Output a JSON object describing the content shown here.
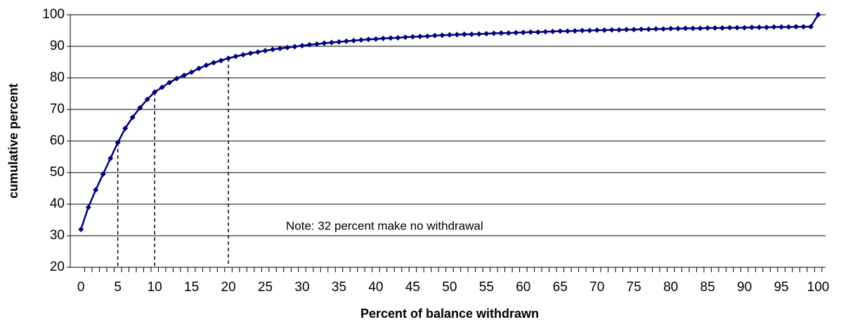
{
  "chart_data": {
    "type": "line",
    "xlabel": "Percent of balance withdrawn",
    "ylabel": "cumulative percent",
    "annotation": "Note:  32 percent make no withdrawal",
    "color": "#000080",
    "x": [
      0,
      1,
      2,
      3,
      4,
      5,
      6,
      7,
      8,
      9,
      10,
      11,
      12,
      13,
      14,
      15,
      16,
      17,
      18,
      19,
      20,
      21,
      22,
      23,
      24,
      25,
      26,
      27,
      28,
      29,
      30,
      31,
      32,
      33,
      34,
      35,
      36,
      37,
      38,
      39,
      40,
      41,
      42,
      43,
      44,
      45,
      46,
      47,
      48,
      49,
      50,
      51,
      52,
      53,
      54,
      55,
      56,
      57,
      58,
      59,
      60,
      61,
      62,
      63,
      64,
      65,
      66,
      67,
      68,
      69,
      70,
      71,
      72,
      73,
      74,
      75,
      76,
      77,
      78,
      79,
      80,
      81,
      82,
      83,
      84,
      85,
      86,
      87,
      88,
      89,
      90,
      91,
      92,
      93,
      94,
      95,
      96,
      97,
      98,
      99,
      100
    ],
    "values": [
      32,
      39,
      44.5,
      49.5,
      54.5,
      59.5,
      64,
      67.5,
      70.5,
      73.2,
      75.5,
      77,
      78.5,
      79.8,
      80.8,
      81.8,
      83,
      84,
      84.8,
      85.5,
      86.2,
      86.8,
      87.3,
      87.8,
      88.2,
      88.6,
      89,
      89.3,
      89.6,
      89.9,
      90.2,
      90.5,
      90.7,
      91,
      91.2,
      91.4,
      91.6,
      91.8,
      92,
      92.2,
      92.3,
      92.5,
      92.6,
      92.7,
      92.9,
      93,
      93.1,
      93.2,
      93.4,
      93.5,
      93.6,
      93.7,
      93.8,
      93.8,
      93.9,
      94,
      94.1,
      94.2,
      94.2,
      94.3,
      94.4,
      94.5,
      94.5,
      94.6,
      94.7,
      94.8,
      94.8,
      94.9,
      95,
      95,
      95.1,
      95.1,
      95.2,
      95.2,
      95.3,
      95.3,
      95.4,
      95.4,
      95.5,
      95.5,
      95.6,
      95.6,
      95.7,
      95.7,
      95.7,
      95.8,
      95.8,
      95.8,
      95.9,
      95.9,
      95.9,
      96,
      96,
      96,
      96.1,
      96.1,
      96.1,
      96.2,
      96.2,
      96.2,
      100
    ],
    "droplines": [
      5,
      10,
      20
    ],
    "xlim": [
      -1.45,
      101
    ],
    "xticks": [
      0,
      5,
      10,
      15,
      20,
      25,
      30,
      35,
      40,
      45,
      50,
      55,
      60,
      65,
      70,
      75,
      80,
      85,
      90,
      95,
      100
    ],
    "ylim": [
      20,
      100
    ],
    "yticks": [
      20,
      30,
      40,
      50,
      60,
      70,
      80,
      90,
      100
    ],
    "grid": true
  }
}
